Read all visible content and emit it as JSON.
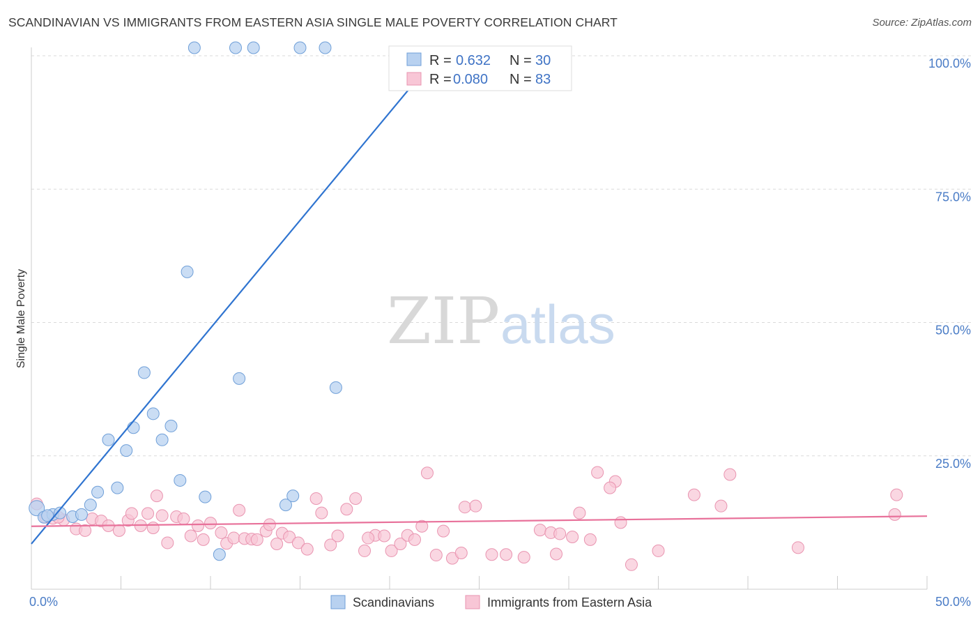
{
  "title": "SCANDINAVIAN VS IMMIGRANTS FROM EASTERN ASIA SINGLE MALE POVERTY CORRELATION CHART",
  "source": "Source: ZipAtlas.com",
  "watermark": {
    "part1": "ZIP",
    "part2": "atlas"
  },
  "colors": {
    "blue_fill": "#b8d1f0",
    "blue_stroke": "#6f9fd8",
    "blue_line": "#2f74d0",
    "pink_fill": "#f8c6d6",
    "pink_stroke": "#e994b0",
    "pink_line": "#e8719a",
    "value_text": "#3f73c5",
    "label_text": "#333333"
  },
  "legend": {
    "rows": [
      {
        "r_label": "R =",
        "r_value": "0.632",
        "n_label": "N =",
        "n_value": "30"
      },
      {
        "r_label": "R =",
        "r_value": "0.080",
        "n_label": "N =",
        "n_value": "83"
      }
    ]
  },
  "bottom_legend": [
    "Scandinavians",
    "Immigrants from Eastern Asia"
  ],
  "chart_data": {
    "type": "scatter",
    "title": "SCANDINAVIAN VS IMMIGRANTS FROM EASTERN ASIA SINGLE MALE POVERTY CORRELATION CHART",
    "xlabel": "",
    "ylabel": "Single Male Poverty",
    "xlim": [
      0,
      50
    ],
    "ylim": [
      0,
      100
    ],
    "x_tick_labels": [
      "0.0%",
      "50.0%"
    ],
    "y_tick_labels": [
      "25.0%",
      "50.0%",
      "75.0%",
      "100.0%"
    ],
    "y_ticks": [
      25,
      50,
      75,
      100
    ],
    "grid": true,
    "series": [
      {
        "name": "Scandinavians",
        "trend": {
          "x": [
            0,
            23.0
          ],
          "y": [
            8.5,
            101.5
          ]
        },
        "points": [
          [
            0.3,
            15.2
          ],
          [
            0.7,
            13.5
          ],
          [
            1.2,
            14.0
          ],
          [
            2.3,
            13.6
          ],
          [
            2.8,
            14.0
          ],
          [
            3.3,
            15.8
          ],
          [
            3.7,
            18.2
          ],
          [
            4.3,
            28.0
          ],
          [
            4.8,
            19.0
          ],
          [
            5.3,
            26.0
          ],
          [
            5.7,
            30.3
          ],
          [
            6.3,
            40.6
          ],
          [
            6.8,
            32.9
          ],
          [
            7.3,
            28.0
          ],
          [
            7.8,
            30.6
          ],
          [
            8.3,
            20.4
          ],
          [
            8.7,
            59.5
          ],
          [
            9.7,
            17.3
          ],
          [
            10.5,
            6.5
          ],
          [
            11.6,
            39.5
          ],
          [
            9.1,
            101.5
          ],
          [
            11.4,
            101.5
          ],
          [
            12.4,
            101.5
          ],
          [
            15.0,
            101.5
          ],
          [
            16.4,
            101.5
          ],
          [
            14.2,
            15.8
          ],
          [
            14.6,
            17.5
          ],
          [
            17.0,
            37.8
          ],
          [
            1.6,
            14.3
          ],
          [
            0.9,
            13.8
          ]
        ]
      },
      {
        "name": "Immigrants from Eastern Asia",
        "trend": {
          "x": [
            0,
            50
          ],
          "y": [
            11.8,
            13.7
          ]
        },
        "points": [
          [
            0.3,
            16.0
          ],
          [
            0.8,
            13.5
          ],
          [
            1.2,
            13.3
          ],
          [
            1.8,
            13.0
          ],
          [
            2.5,
            11.3
          ],
          [
            3.0,
            11.0
          ],
          [
            3.4,
            13.2
          ],
          [
            3.9,
            12.8
          ],
          [
            4.3,
            11.9
          ],
          [
            4.9,
            11.0
          ],
          [
            5.4,
            12.9
          ],
          [
            5.6,
            14.2
          ],
          [
            6.1,
            11.9
          ],
          [
            6.5,
            14.2
          ],
          [
            6.8,
            11.5
          ],
          [
            7.3,
            13.8
          ],
          [
            7.6,
            8.7
          ],
          [
            8.1,
            13.6
          ],
          [
            8.5,
            13.2
          ],
          [
            8.9,
            10.0
          ],
          [
            9.3,
            11.9
          ],
          [
            9.6,
            9.3
          ],
          [
            10.0,
            12.4
          ],
          [
            10.6,
            10.6
          ],
          [
            10.9,
            8.6
          ],
          [
            11.3,
            9.6
          ],
          [
            11.6,
            14.8
          ],
          [
            11.9,
            9.5
          ],
          [
            12.3,
            9.4
          ],
          [
            12.6,
            9.3
          ],
          [
            13.1,
            10.9
          ],
          [
            13.3,
            12.1
          ],
          [
            13.7,
            8.5
          ],
          [
            14.0,
            10.5
          ],
          [
            14.4,
            9.8
          ],
          [
            14.9,
            8.7
          ],
          [
            15.4,
            7.5
          ],
          [
            15.9,
            17.0
          ],
          [
            16.2,
            14.3
          ],
          [
            16.7,
            8.3
          ],
          [
            17.1,
            10.0
          ],
          [
            17.6,
            15.0
          ],
          [
            18.1,
            17.0
          ],
          [
            18.6,
            7.2
          ],
          [
            19.2,
            10.1
          ],
          [
            19.7,
            10.0
          ],
          [
            20.1,
            7.2
          ],
          [
            20.6,
            8.5
          ],
          [
            21.0,
            10.1
          ],
          [
            21.4,
            9.3
          ],
          [
            21.8,
            11.8
          ],
          [
            22.1,
            21.8
          ],
          [
            22.6,
            6.4
          ],
          [
            23.0,
            10.9
          ],
          [
            23.5,
            5.8
          ],
          [
            24.2,
            15.4
          ],
          [
            24.8,
            15.6
          ],
          [
            25.7,
            6.5
          ],
          [
            26.5,
            6.5
          ],
          [
            27.5,
            6.0
          ],
          [
            28.4,
            11.1
          ],
          [
            29.0,
            10.6
          ],
          [
            29.5,
            10.4
          ],
          [
            30.2,
            9.8
          ],
          [
            30.6,
            14.3
          ],
          [
            31.2,
            9.3
          ],
          [
            31.6,
            21.9
          ],
          [
            32.6,
            20.2
          ],
          [
            32.3,
            19.0
          ],
          [
            32.9,
            12.5
          ],
          [
            33.5,
            4.6
          ],
          [
            37.0,
            17.7
          ],
          [
            38.5,
            15.6
          ],
          [
            39.0,
            21.5
          ],
          [
            35.0,
            7.2
          ],
          [
            42.8,
            7.8
          ],
          [
            18.8,
            9.6
          ],
          [
            24.0,
            6.8
          ],
          [
            29.3,
            6.6
          ],
          [
            7.0,
            17.5
          ],
          [
            48.2,
            14.0
          ],
          [
            48.3,
            17.7
          ],
          [
            1.5,
            13.5
          ]
        ]
      }
    ]
  }
}
